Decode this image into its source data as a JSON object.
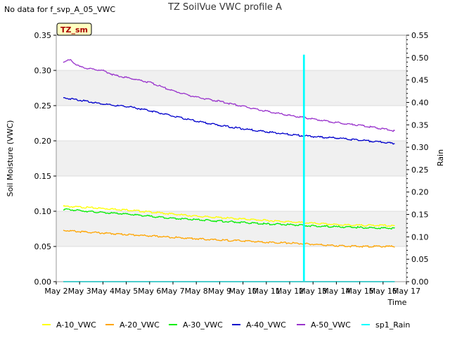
{
  "notice": "No data for f_svp_A_05_VWC",
  "chart_data": {
    "type": "line",
    "title": "TZ SoilVue VWC profile A",
    "xlabel": "Time",
    "ylabel": "Soil Moisture (VWC)",
    "y2label": "Rain",
    "badge": "TZ_sm",
    "x_ticks": [
      "May 2",
      "May 3",
      "May 4",
      "May 5",
      "May 6",
      "May 7",
      "May 8",
      "May 9",
      "May 10",
      "May 11",
      "May 12",
      "May 13",
      "May 14",
      "May 15",
      "May 16",
      "May 17"
    ],
    "xlim": [
      0,
      15
    ],
    "ylim": [
      0,
      0.35
    ],
    "y_ticks": [
      "0.00",
      "0.05",
      "0.10",
      "0.15",
      "0.20",
      "0.25",
      "0.30",
      "0.35"
    ],
    "y2lim": [
      0,
      0.55
    ],
    "y2_ticks": [
      "0.00",
      "0.05",
      "0.10",
      "0.15",
      "0.20",
      "0.25",
      "0.30",
      "0.35",
      "0.40",
      "0.45",
      "0.50",
      "0.55"
    ],
    "grid": true,
    "legend_position": "bottom",
    "series": [
      {
        "name": "A-10_VWC",
        "color": "#ffff00",
        "axis": "left",
        "x": [
          0.3,
          1,
          2,
          3,
          4,
          5,
          6,
          7,
          8,
          9,
          10,
          11,
          12,
          13,
          14,
          14.5
        ],
        "y": [
          0.107,
          0.106,
          0.104,
          0.102,
          0.099,
          0.096,
          0.093,
          0.091,
          0.089,
          0.087,
          0.085,
          0.083,
          0.081,
          0.08,
          0.08,
          0.079
        ]
      },
      {
        "name": "A-20_VWC",
        "color": "#ffa500",
        "axis": "left",
        "x": [
          0.3,
          1,
          2,
          3,
          4,
          5,
          6,
          7,
          8,
          9,
          10,
          11,
          12,
          13,
          14,
          14.5
        ],
        "y": [
          0.073,
          0.071,
          0.069,
          0.067,
          0.065,
          0.063,
          0.061,
          0.059,
          0.058,
          0.056,
          0.055,
          0.053,
          0.051,
          0.05,
          0.05,
          0.05
        ]
      },
      {
        "name": "A-30_VWC",
        "color": "#00ee00",
        "axis": "left",
        "x": [
          0.3,
          1,
          2,
          3,
          4,
          5,
          6,
          7,
          8,
          9,
          10,
          11,
          12,
          13,
          14,
          14.5
        ],
        "y": [
          0.103,
          0.101,
          0.098,
          0.096,
          0.093,
          0.09,
          0.088,
          0.086,
          0.084,
          0.082,
          0.081,
          0.079,
          0.078,
          0.077,
          0.076,
          0.076
        ]
      },
      {
        "name": "A-40_VWC",
        "color": "#0000cc",
        "axis": "left",
        "x": [
          0.3,
          0.8,
          1.5,
          2.5,
          3,
          4,
          5,
          6,
          7,
          8,
          9,
          10,
          11,
          12,
          13,
          14,
          14.5
        ],
        "y": [
          0.261,
          0.259,
          0.255,
          0.25,
          0.249,
          0.243,
          0.235,
          0.228,
          0.222,
          0.217,
          0.213,
          0.209,
          0.206,
          0.204,
          0.201,
          0.198,
          0.196
        ]
      },
      {
        "name": "A-50_VWC",
        "color": "#9933cc",
        "axis": "left",
        "x": [
          0.3,
          0.6,
          1,
          1.5,
          2,
          2.5,
          3,
          4,
          5,
          6,
          7,
          8,
          9,
          10,
          11,
          12,
          13,
          14,
          14.5
        ],
        "y": [
          0.312,
          0.315,
          0.305,
          0.302,
          0.3,
          0.293,
          0.29,
          0.283,
          0.271,
          0.262,
          0.256,
          0.249,
          0.242,
          0.236,
          0.231,
          0.226,
          0.222,
          0.217,
          0.214
        ]
      },
      {
        "name": "sp1_Rain",
        "color": "#00ffff",
        "axis": "right",
        "x": [
          0.3,
          10.6,
          10.6,
          10.62,
          10.62,
          14.5
        ],
        "y": [
          0,
          0,
          0.505,
          0.505,
          0,
          0
        ]
      }
    ]
  }
}
